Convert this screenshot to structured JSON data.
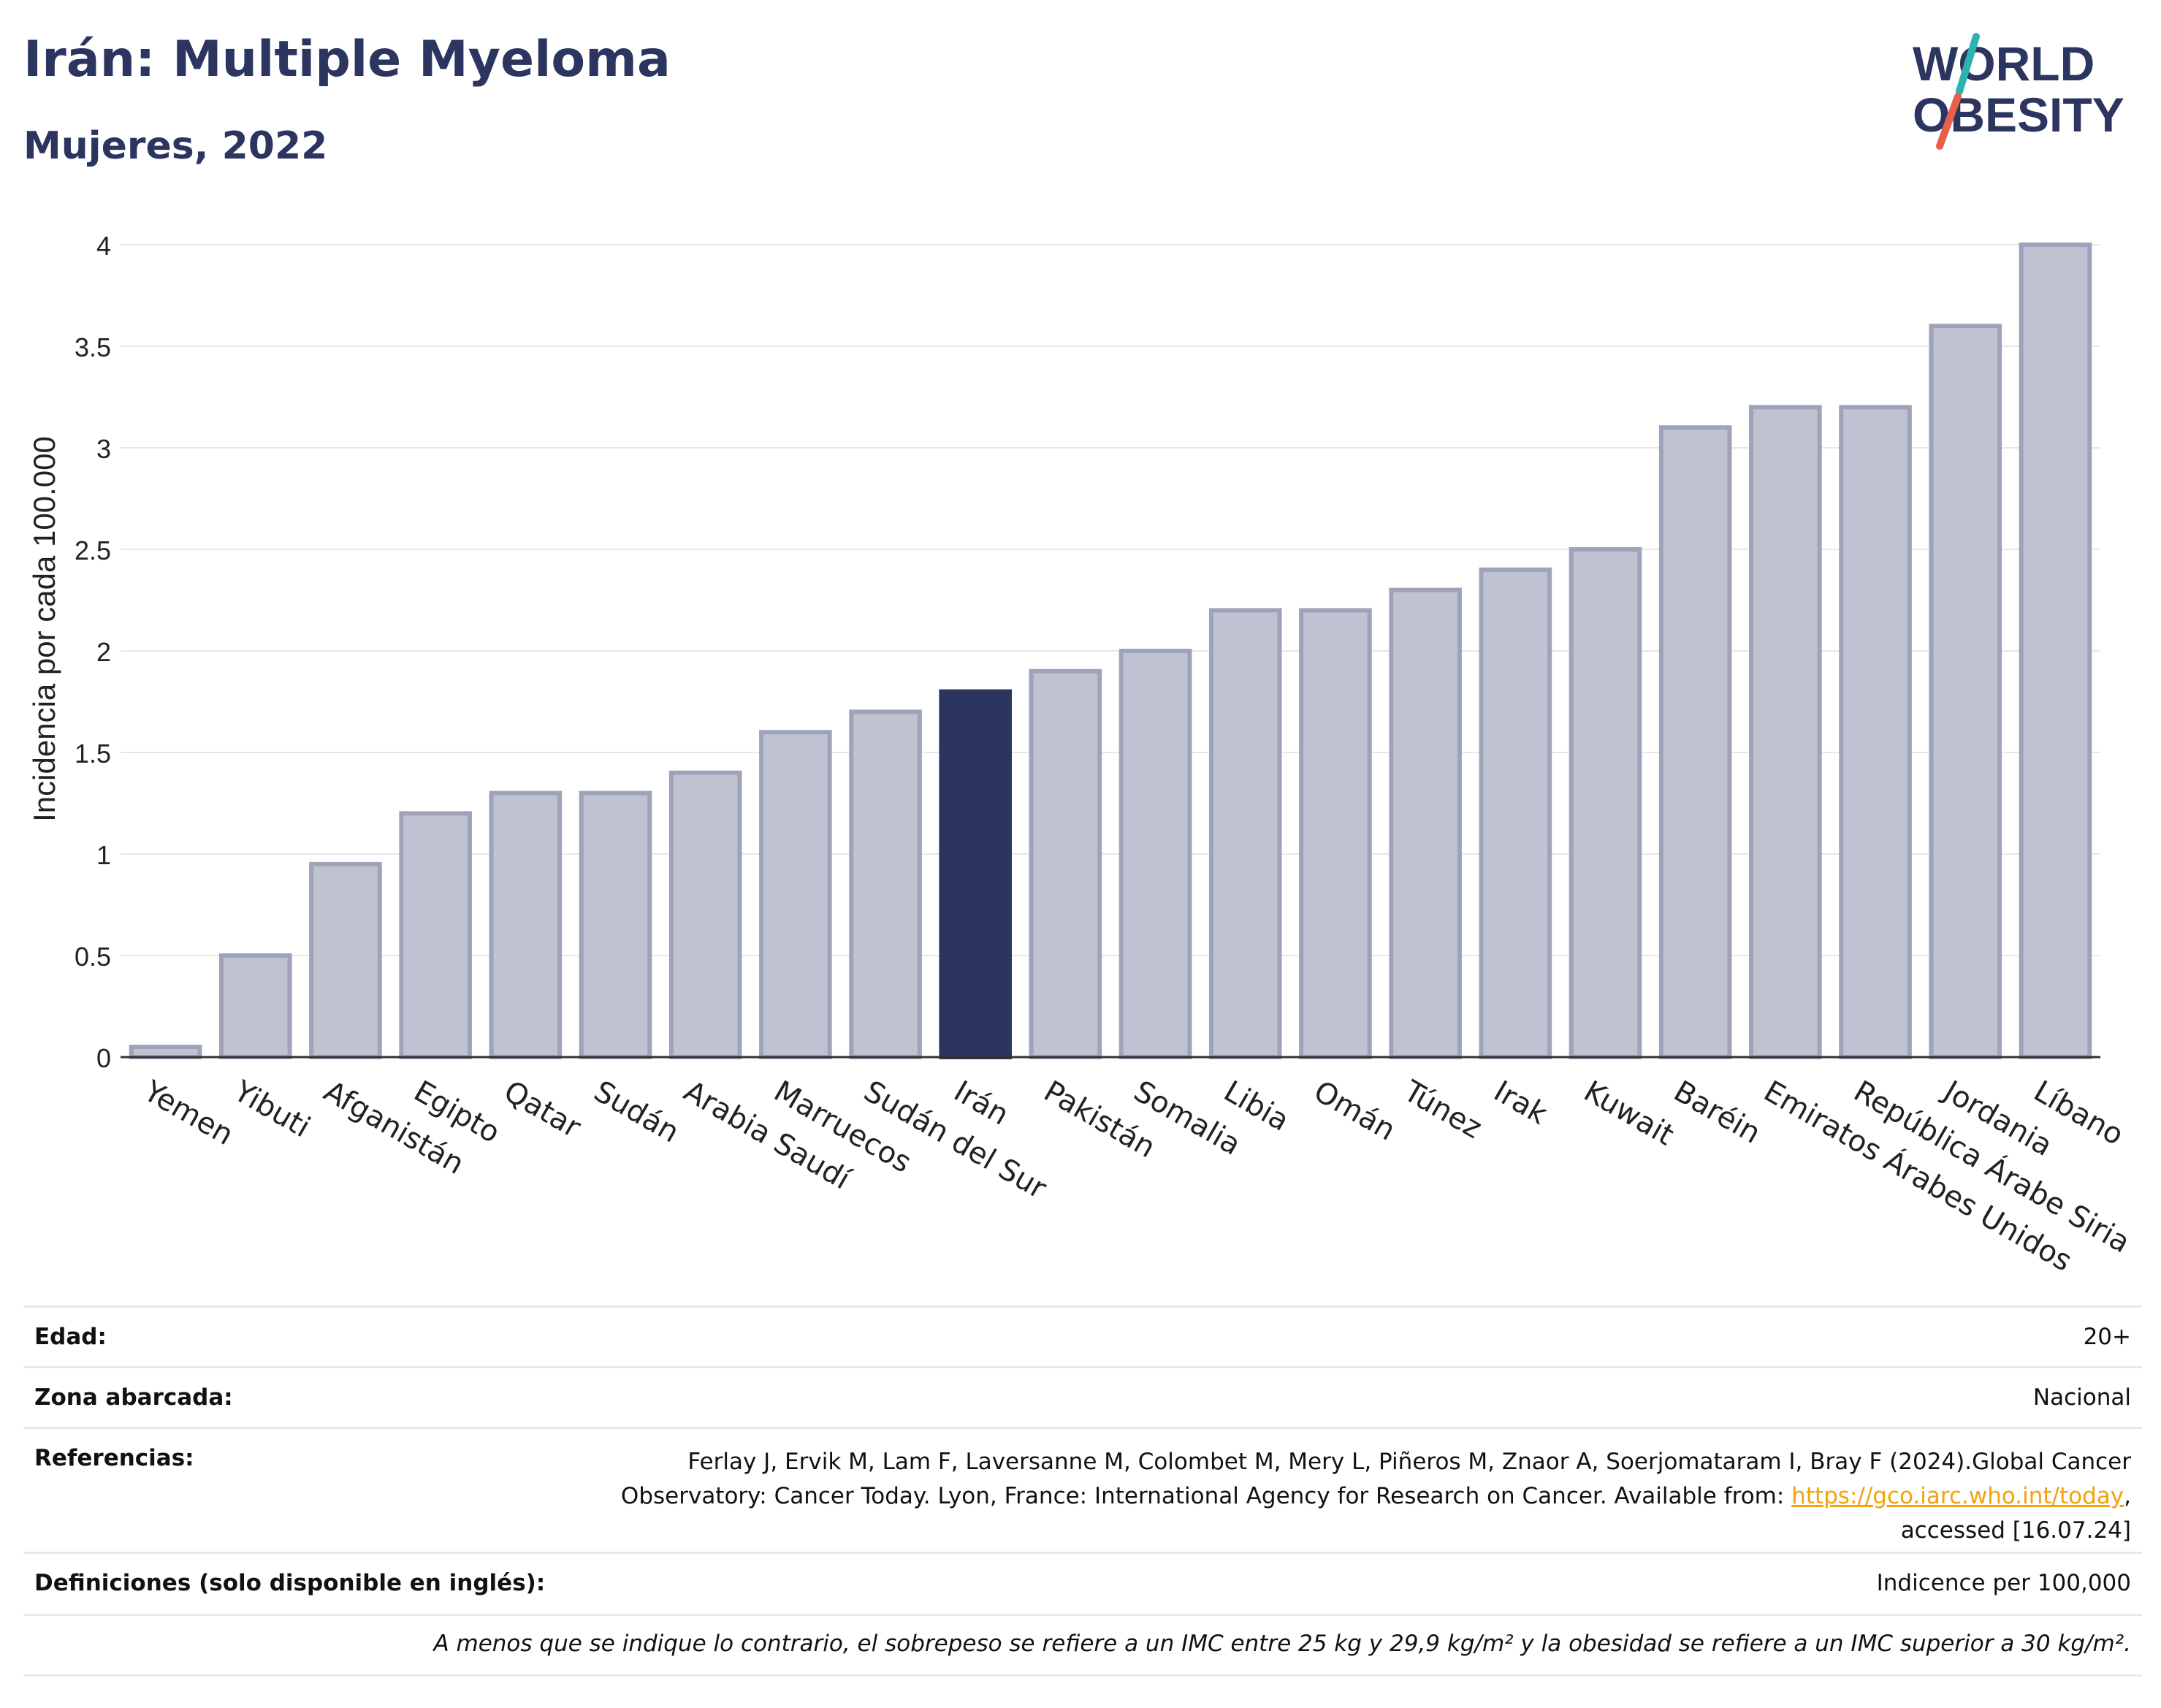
{
  "header": {
    "title": "Irán: Multiple Myeloma",
    "subtitle": "Mujeres, 2022",
    "logo_line1": "WORLD",
    "logo_line2": "OBESITY"
  },
  "colors": {
    "highlight": "#2b3560",
    "bar_fill": "#bfc2d0",
    "bar_stroke": "#9ea3ba",
    "link": "#f0a30a",
    "logo_teal": "#2bb3b1",
    "logo_red": "#e8604c"
  },
  "chart_data": {
    "type": "bar",
    "ylabel": "Incidencia por cada 100.000",
    "ylim": [
      0,
      4
    ],
    "yticks": [
      0,
      0.5,
      1,
      1.5,
      2,
      2.5,
      3,
      3.5,
      4
    ],
    "ytick_labels": [
      "0",
      "0.5",
      "1",
      "1.5",
      "2",
      "2.5",
      "3",
      "3.5",
      "4"
    ],
    "grid": true,
    "highlight_category": "Irán",
    "categories": [
      "Yemen",
      "Yibuti",
      "Afganistán",
      "Egipto",
      "Qatar",
      "Sudán",
      "Arabia Saudí",
      "Marruecos",
      "Sudán del Sur",
      "Irán",
      "Pakistán",
      "Somalia",
      "Libia",
      "Omán",
      "Túnez",
      "Irak",
      "Kuwait",
      "Baréin",
      "Emiratos Árabes Unidos",
      "República Árabe Siria",
      "Jordania",
      "Líbano"
    ],
    "values": [
      0.05,
      0.5,
      0.95,
      1.2,
      1.3,
      1.3,
      1.4,
      1.6,
      1.7,
      1.8,
      1.9,
      2.0,
      2.2,
      2.2,
      2.3,
      2.4,
      2.5,
      3.1,
      3.2,
      3.2,
      3.6,
      4.0
    ]
  },
  "info": {
    "age_label": "Edad:",
    "age_value": "20+",
    "area_label": "Zona abarcada:",
    "area_value": "Nacional",
    "refs_label": "Referencias:",
    "refs_line1": "Ferlay J, Ervik M, Lam F, Laversanne M, Colombet M, Mery L, Piñeros M, Znaor A, Soerjomataram I, Bray F (2024).Global Cancer",
    "refs_line2": "Observatory: Cancer Today. Lyon, France: International Agency for Research on Cancer. Available from: ",
    "refs_link": "https://gco.iarc.who.int/today",
    "refs_line2_end": ",",
    "refs_line3": "accessed [16.07.24]",
    "defs_label": "Definiciones (solo disponible en inglés):",
    "defs_value": "Indicence per 100,000",
    "note": "A menos que se indique lo contrario, el sobrepeso se refiere a un IMC entre 25 kg y 29,9 kg/m² y la obesidad se refiere a un IMC superior a 30 kg/m²."
  }
}
